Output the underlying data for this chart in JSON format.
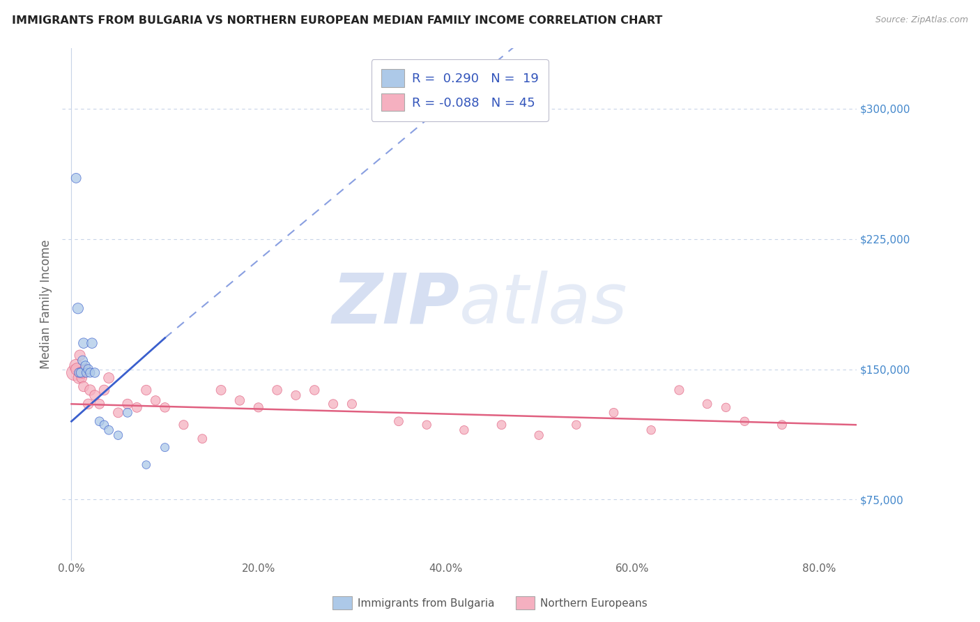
{
  "title": "IMMIGRANTS FROM BULGARIA VS NORTHERN EUROPEAN MEDIAN FAMILY INCOME CORRELATION CHART",
  "source": "Source: ZipAtlas.com",
  "ylabel": "Median Family Income",
  "x_ticklabels": [
    "0.0%",
    "20.0%",
    "40.0%",
    "60.0%",
    "80.0%"
  ],
  "x_ticks": [
    0,
    20,
    40,
    60,
    80
  ],
  "y_ticks": [
    75000,
    150000,
    225000,
    300000
  ],
  "y_ticklabels": [
    "$75,000",
    "$150,000",
    "$225,000",
    "$300,000"
  ],
  "ylim": [
    40000,
    335000
  ],
  "xlim": [
    -1,
    84
  ],
  "legend_r1": "R =  0.290",
  "legend_n1": "N =  19",
  "legend_r2": "R = -0.088",
  "legend_n2": "N = 45",
  "series1_color": "#adc9e8",
  "series2_color": "#f5b0c0",
  "trend1_color": "#3a5fcd",
  "trend2_color": "#e06080",
  "bg_color": "#ffffff",
  "grid_color": "#c8d4e8",
  "watermark_color": "#ccd8ef",
  "legend_label1": "Immigrants from Bulgaria",
  "legend_label2": "Northern Europeans",
  "series1_x": [
    0.5,
    0.7,
    0.8,
    1.0,
    1.2,
    1.3,
    1.5,
    1.6,
    1.8,
    2.0,
    2.2,
    2.5,
    3.0,
    3.5,
    4.0,
    5.0,
    6.0,
    8.0,
    10.0
  ],
  "series1_y": [
    260000,
    185000,
    148000,
    148000,
    155000,
    165000,
    152000,
    148000,
    150000,
    148000,
    165000,
    148000,
    120000,
    118000,
    115000,
    112000,
    125000,
    95000,
    105000
  ],
  "series1_size": [
    100,
    120,
    90,
    90,
    100,
    110,
    95,
    90,
    95,
    90,
    110,
    95,
    85,
    80,
    85,
    80,
    85,
    70,
    75
  ],
  "series2_x": [
    0.3,
    0.5,
    0.6,
    0.8,
    0.9,
    1.0,
    1.1,
    1.2,
    1.3,
    1.5,
    1.8,
    2.0,
    2.5,
    3.0,
    3.5,
    4.0,
    5.0,
    6.0,
    7.0,
    8.0,
    9.0,
    10.0,
    12.0,
    14.0,
    16.0,
    18.0,
    20.0,
    22.0,
    24.0,
    26.0,
    28.0,
    30.0,
    35.0,
    38.0,
    42.0,
    46.0,
    50.0,
    54.0,
    58.0,
    62.0,
    65.0,
    68.0,
    70.0,
    72.0,
    76.0
  ],
  "series2_y": [
    148000,
    152000,
    150000,
    145000,
    158000,
    148000,
    145000,
    148000,
    140000,
    150000,
    130000,
    138000,
    135000,
    130000,
    138000,
    145000,
    125000,
    130000,
    128000,
    138000,
    132000,
    128000,
    118000,
    110000,
    138000,
    132000,
    128000,
    138000,
    135000,
    138000,
    130000,
    130000,
    120000,
    118000,
    115000,
    118000,
    112000,
    118000,
    125000,
    115000,
    138000,
    130000,
    128000,
    120000,
    118000
  ],
  "series2_size": [
    250,
    180,
    160,
    140,
    120,
    130,
    110,
    120,
    110,
    130,
    110,
    120,
    110,
    100,
    110,
    115,
    100,
    105,
    100,
    105,
    95,
    95,
    90,
    85,
    100,
    95,
    90,
    95,
    90,
    95,
    90,
    90,
    85,
    80,
    80,
    85,
    80,
    80,
    85,
    80,
    90,
    85,
    80,
    80,
    85
  ],
  "trend1_x0": 0,
  "trend1_y0": 120000,
  "trend1_x1": 10,
  "trend1_y1": 168000,
  "trend1_xdash0": 10,
  "trend1_ydash0": 168000,
  "trend1_xdash1": 84,
  "trend1_ydash1": 500000,
  "trend2_x0": 0,
  "trend2_y0": 130000,
  "trend2_x1": 84,
  "trend2_y1": 118000
}
